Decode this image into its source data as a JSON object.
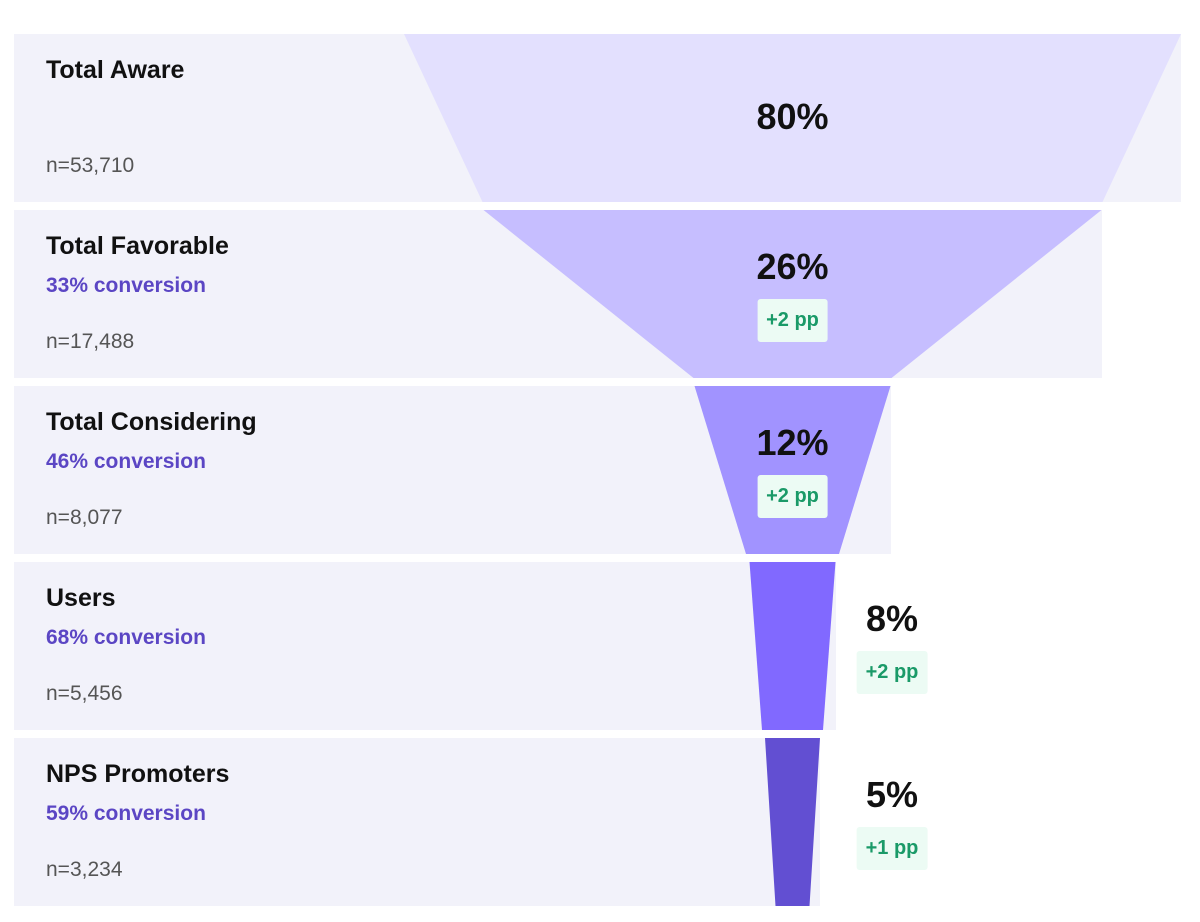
{
  "colors": {
    "band_bg": "#f2f2fa",
    "conversion_text": "#5b46c4",
    "delta_text": "#1a9a68",
    "delta_bg": "#ecfbf4",
    "segments": [
      "#e3e0fe",
      "#c6beff",
      "#a193ff",
      "#8169ff",
      "#624fd2"
    ]
  },
  "chart_data": {
    "type": "funnel",
    "stages": [
      {
        "name": "Total Aware",
        "value": 80,
        "value_label": "80%",
        "conversion": "",
        "n": "n=53,710",
        "delta": ""
      },
      {
        "name": "Total Favorable",
        "value": 26,
        "value_label": "26%",
        "conversion": "33% conversion",
        "n": "n=17,488",
        "delta": "+2 pp"
      },
      {
        "name": "Total Considering",
        "value": 12,
        "value_label": "12%",
        "conversion": "46% conversion",
        "n": "n=8,077",
        "delta": "+2 pp"
      },
      {
        "name": "Users",
        "value": 8,
        "value_label": "8%",
        "conversion": "68% conversion",
        "n": "n=5,456",
        "delta": "+2 pp"
      },
      {
        "name": "NPS Promoters",
        "value": 5,
        "value_label": "5%",
        "conversion": "59% conversion",
        "n": "n=3,234",
        "delta": "+1 pp"
      }
    ]
  }
}
